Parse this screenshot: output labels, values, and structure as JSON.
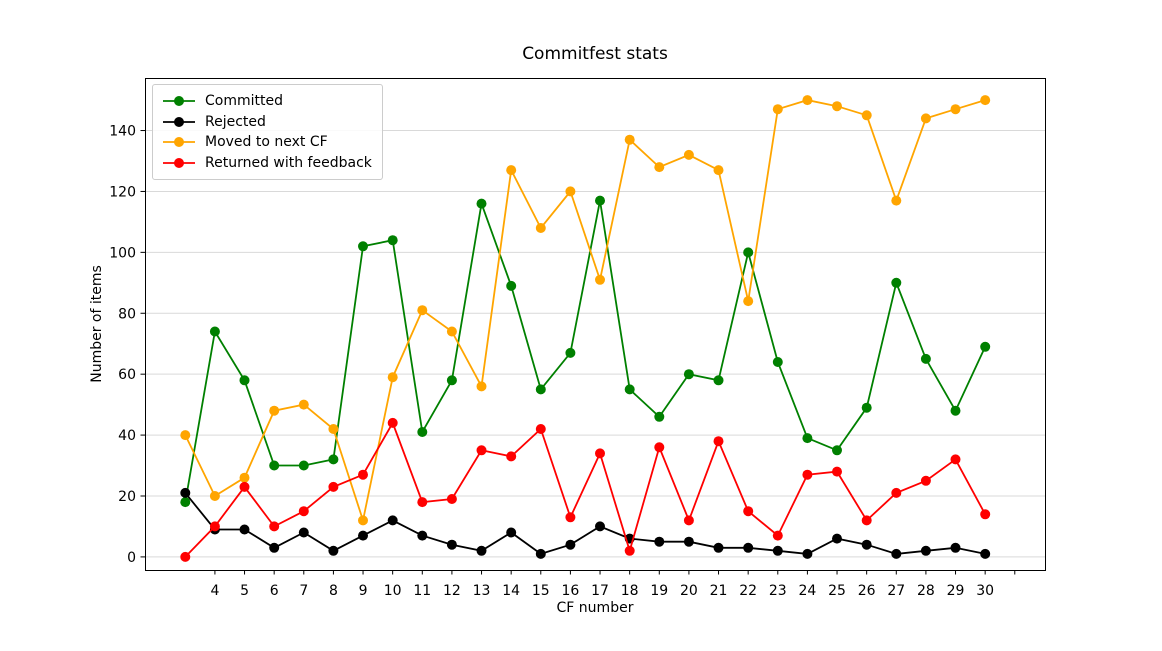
{
  "figure": {
    "background": "#ffffff"
  },
  "chart_data": {
    "type": "line",
    "title": "Commitfest stats",
    "xlabel": "CF number",
    "ylabel": "Number of items",
    "x": [
      3,
      4,
      5,
      6,
      7,
      8,
      9,
      10,
      11,
      12,
      13,
      14,
      15,
      16,
      17,
      18,
      19,
      20,
      21,
      22,
      23,
      24,
      25,
      26,
      27,
      28,
      29,
      30
    ],
    "series": [
      {
        "name": "Committed",
        "color": "#008000",
        "values": [
          18,
          74,
          58,
          30,
          30,
          32,
          102,
          104,
          41,
          58,
          116,
          89,
          55,
          67,
          117,
          55,
          46,
          60,
          58,
          100,
          64,
          39,
          35,
          49,
          90,
          65,
          48,
          69
        ]
      },
      {
        "name": "Rejected",
        "color": "#000000",
        "values": [
          21,
          9,
          9,
          3,
          8,
          2,
          7,
          12,
          7,
          4,
          2,
          8,
          1,
          4,
          10,
          6,
          5,
          5,
          3,
          3,
          2,
          1,
          6,
          4,
          1,
          2,
          3,
          1
        ]
      },
      {
        "name": "Moved to next CF",
        "color": "#ffa500",
        "values": [
          40,
          20,
          26,
          48,
          50,
          42,
          12,
          59,
          81,
          74,
          56,
          127,
          108,
          120,
          91,
          137,
          128,
          132,
          127,
          84,
          147,
          150,
          148,
          145,
          117,
          144,
          147,
          150
        ]
      },
      {
        "name": "Returned with feedback",
        "color": "#ff0000",
        "values": [
          0,
          10,
          23,
          10,
          15,
          23,
          27,
          44,
          18,
          19,
          35,
          33,
          42,
          13,
          34,
          2,
          36,
          12,
          38,
          15,
          7,
          27,
          28,
          12,
          21,
          25,
          32,
          14
        ]
      }
    ],
    "xticks": [
      4,
      5,
      6,
      7,
      8,
      9,
      10,
      11,
      12,
      13,
      14,
      15,
      16,
      17,
      18,
      19,
      20,
      21,
      22,
      23,
      24,
      25,
      26,
      27,
      28,
      29,
      30
    ],
    "unlabeled_xticks": [
      31
    ],
    "yticks": [
      0,
      20,
      40,
      60,
      80,
      100,
      120,
      140
    ],
    "xlim": [
      1.64,
      32.02
    ],
    "ylim": [
      -4.3,
      157.25
    ],
    "grid": "horizontal-only",
    "grid_color": "#d9d9d9",
    "axis_color": "#000000",
    "legend_position": "upper-left"
  }
}
